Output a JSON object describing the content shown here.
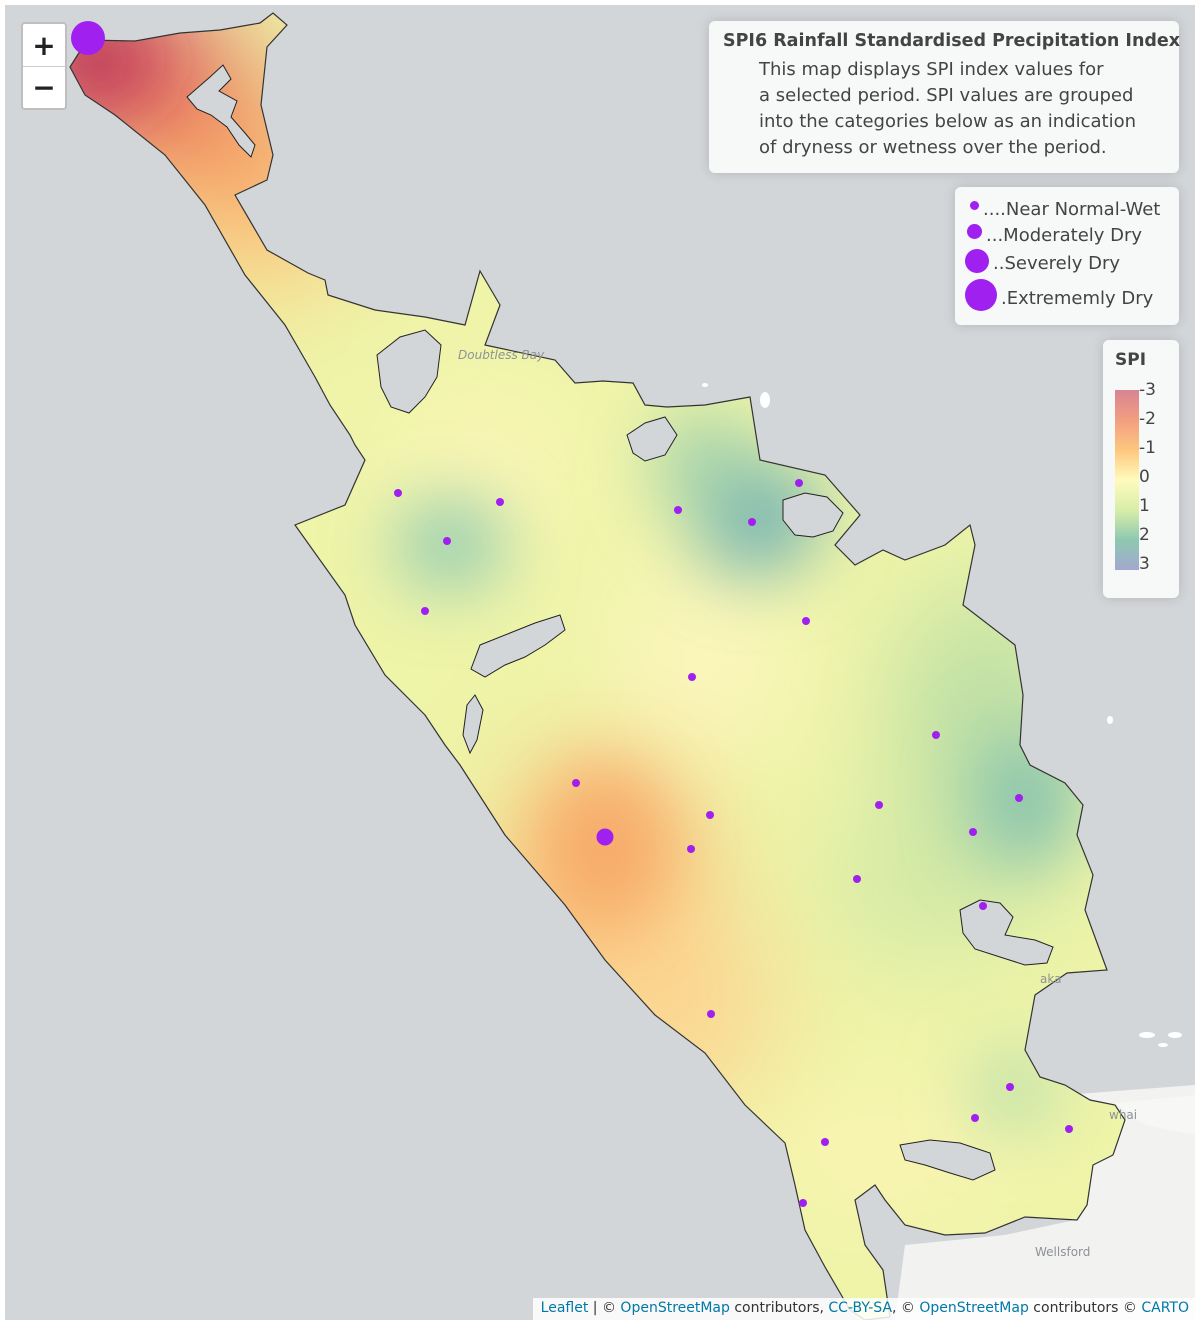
{
  "zoom": {
    "in_label": "+",
    "out_label": "−"
  },
  "info": {
    "title": "SPI6 Rainfall Standardised Precipitation Index",
    "lines": [
      "This map displays SPI index values for",
      "a selected period. SPI values are grouped",
      "into the categories below as an indication",
      "of dryness or wetness over the period."
    ]
  },
  "size_legend": {
    "dot_color": "#a020f0",
    "items": [
      {
        "label": "....Near Normal-Wet"
      },
      {
        "label": "...Moderately Dry"
      },
      {
        "label": "..Severely Dry"
      },
      {
        "label": ".Extrememly Dry"
      }
    ]
  },
  "spi_legend": {
    "title": "SPI",
    "ticks": [
      "-3",
      "-2",
      "-1",
      "0",
      "1",
      "2",
      "3"
    ],
    "colors": {
      "-3": "#d78493",
      "-2": "#f29e80",
      "-1": "#fdc77f",
      "0": "#fffbbd",
      "1": "#d8eea8",
      "2": "#8ec8b0",
      "3": "#a2a8d0"
    }
  },
  "map_labels": [
    "Doubtless Bay",
    "Wellsford",
    "aka",
    "whai"
  ],
  "attribution": {
    "leaflet": "Leaflet",
    "sep1": " | © ",
    "osm1": "OpenStreetMap",
    "text1": " contributors, ",
    "license": "CC-BY-SA",
    "sep2": ", © ",
    "osm2": "OpenStreetMap",
    "text2": " contributors © ",
    "carto": "CARTO"
  },
  "stations": [
    {
      "category": "Extrememly Dry"
    },
    {
      "category": "Severely Dry"
    },
    {
      "category": "Near Normal-Wet"
    },
    {
      "category": "Near Normal-Wet"
    },
    {
      "category": "Near Normal-Wet"
    },
    {
      "category": "Near Normal-Wet"
    },
    {
      "category": "Near Normal-Wet"
    },
    {
      "category": "Near Normal-Wet"
    },
    {
      "category": "Near Normal-Wet"
    },
    {
      "category": "Near Normal-Wet"
    },
    {
      "category": "Near Normal-Wet"
    },
    {
      "category": "Near Normal-Wet"
    },
    {
      "category": "Near Normal-Wet"
    },
    {
      "category": "Near Normal-Wet"
    },
    {
      "category": "Near Normal-Wet"
    },
    {
      "category": "Near Normal-Wet"
    },
    {
      "category": "Near Normal-Wet"
    },
    {
      "category": "Near Normal-Wet"
    },
    {
      "category": "Near Normal-Wet"
    },
    {
      "category": "Near Normal-Wet"
    },
    {
      "category": "Near Normal-Wet"
    },
    {
      "category": "Near Normal-Wet"
    },
    {
      "category": "Near Normal-Wet"
    },
    {
      "category": "Near Normal-Wet"
    },
    {
      "category": "Near Normal-Wet"
    },
    {
      "category": "Near Normal-Wet"
    }
  ]
}
